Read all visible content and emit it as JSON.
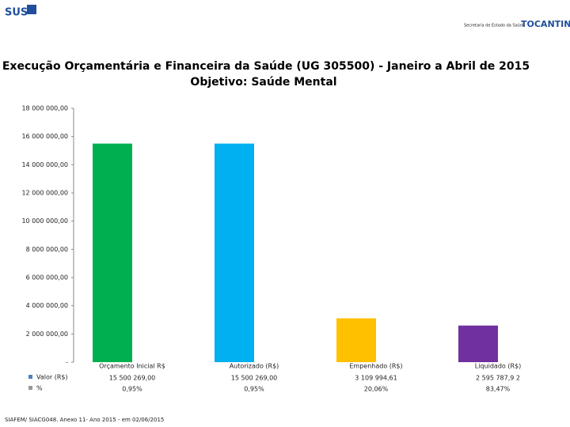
{
  "header": {
    "logo_left": "SUS",
    "agency": "Secretaria de Estado da Saúde",
    "logo_right": "TOCANTINS"
  },
  "chart_data": {
    "type": "bar",
    "title": "Execução Orçamentária e Financeira da Saúde (UG 305500) - Janeiro a Abril de 2015",
    "subtitle": "Objetivo: Saúde Mental",
    "categories": [
      "Orçamento Inicial R$",
      "Autorizado (R$)",
      "Empenhado (R$)",
      "Liquidado (R$)"
    ],
    "series": [
      {
        "name": "Valor (R$)",
        "colors": [
          "#00b050",
          "#00b0f0",
          "#ffc000",
          "#7030a0"
        ],
        "values": [
          15500269.0,
          15500269.0,
          3109994.61,
          2595787.92
        ],
        "value_labels": [
          "15 500 269,00",
          "15 500 269,00",
          "3 109 994,61",
          "2 595 787,9 2"
        ]
      },
      {
        "name": "%",
        "values": [
          0.95,
          0.95,
          20.06,
          83.47
        ],
        "value_labels": [
          "0,95%",
          "0,95%",
          "20,06%",
          "83,47%"
        ]
      }
    ],
    "ylim": [
      0,
      18000000
    ],
    "yticks": [
      {
        "value": 0,
        "label": "-"
      },
      {
        "value": 2000000,
        "label": "2 000 000,00"
      },
      {
        "value": 4000000,
        "label": "4 000 000,00"
      },
      {
        "value": 6000000,
        "label": "6 000 000,00"
      },
      {
        "value": 8000000,
        "label": "8 000 000,00"
      },
      {
        "value": 10000000,
        "label": "10 000 000,00"
      },
      {
        "value": 12000000,
        "label": "12 000 000,00"
      },
      {
        "value": 14000000,
        "label": "14 000 000,00"
      },
      {
        "value": 16000000,
        "label": "16 000 000,00"
      },
      {
        "value": 18000000,
        "label": "18 000 000,00"
      }
    ],
    "source": "SIAFEM/ SIACG048. Anexo 11- Ano 2015 - em 02/06/2015"
  }
}
